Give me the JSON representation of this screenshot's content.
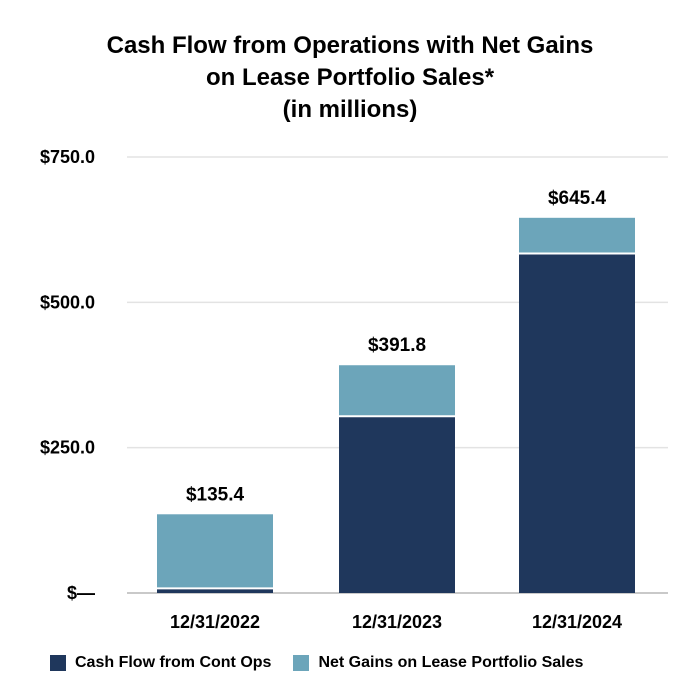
{
  "title": {
    "line1": "Cash Flow from Operations with Net Gains",
    "line2": "on Lease Portfolio Sales*",
    "line3": "(in millions)"
  },
  "chart_data": {
    "type": "bar",
    "stacked": true,
    "categories": [
      "12/31/2022",
      "12/31/2023",
      "12/31/2024"
    ],
    "series": [
      {
        "name": "Cash Flow from Cont Ops",
        "color": "#1f375c",
        "values": [
          8.0,
          304.0,
          584.0
        ]
      },
      {
        "name": "Net Gains on Lease Portfolio Sales",
        "color": "#6ca5ba",
        "values": [
          127.4,
          87.8,
          61.4
        ]
      }
    ],
    "totals": [
      135.4,
      391.8,
      645.4
    ],
    "total_labels": [
      "$135.4",
      "$391.8",
      "$645.4"
    ],
    "yticks": [
      0,
      250,
      500,
      750
    ],
    "ytick_labels": [
      "$—",
      "$250.0",
      "$500.0",
      "$750.0"
    ],
    "ylim": [
      0,
      750
    ],
    "grid": true,
    "legend_position": "bottom"
  }
}
